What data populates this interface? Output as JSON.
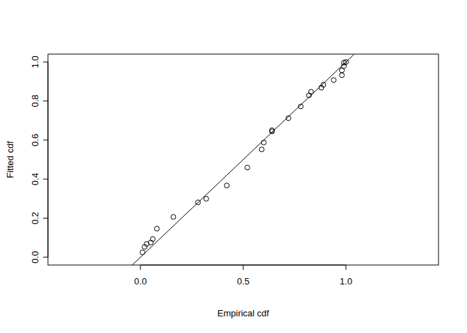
{
  "chart_data": {
    "type": "scatter",
    "x_label": "Empirical cdf",
    "y_label": "Fitted cdf",
    "x": [
      0.01,
      0.02,
      0.03,
      0.05,
      0.06,
      0.08,
      0.16,
      0.28,
      0.32,
      0.42,
      0.52,
      0.59,
      0.6,
      0.64,
      0.64,
      0.72,
      0.78,
      0.82,
      0.83,
      0.88,
      0.89,
      0.94,
      0.98,
      0.98,
      0.99,
      0.99,
      1.0
    ],
    "values": [
      0.025,
      0.053,
      0.068,
      0.075,
      0.093,
      0.146,
      0.206,
      0.281,
      0.299,
      0.367,
      0.459,
      0.552,
      0.587,
      0.644,
      0.65,
      0.712,
      0.772,
      0.829,
      0.847,
      0.868,
      0.883,
      0.907,
      0.932,
      0.957,
      0.979,
      0.996,
      1.0
    ],
    "color": "#000000",
    "marker": "open_circle",
    "abline": {
      "intercept": 0,
      "slope": 1
    },
    "xlim": [
      -0.45,
      1.45
    ],
    "ylim": [
      -0.04,
      1.04
    ],
    "xticks": [
      {
        "value": 0,
        "label": "0.0"
      },
      {
        "value": 0.5,
        "label": "0.5"
      },
      {
        "value": 1,
        "label": "1.0"
      }
    ],
    "yticks": [
      {
        "value": 0,
        "label": "0.0"
      },
      {
        "value": 0.2,
        "label": "0.2"
      },
      {
        "value": 0.4,
        "label": "0.4"
      },
      {
        "value": 0.6,
        "label": "0.6"
      },
      {
        "value": 0.8,
        "label": "0.8"
      },
      {
        "value": 1,
        "label": "1.0"
      }
    ],
    "grid": false
  }
}
